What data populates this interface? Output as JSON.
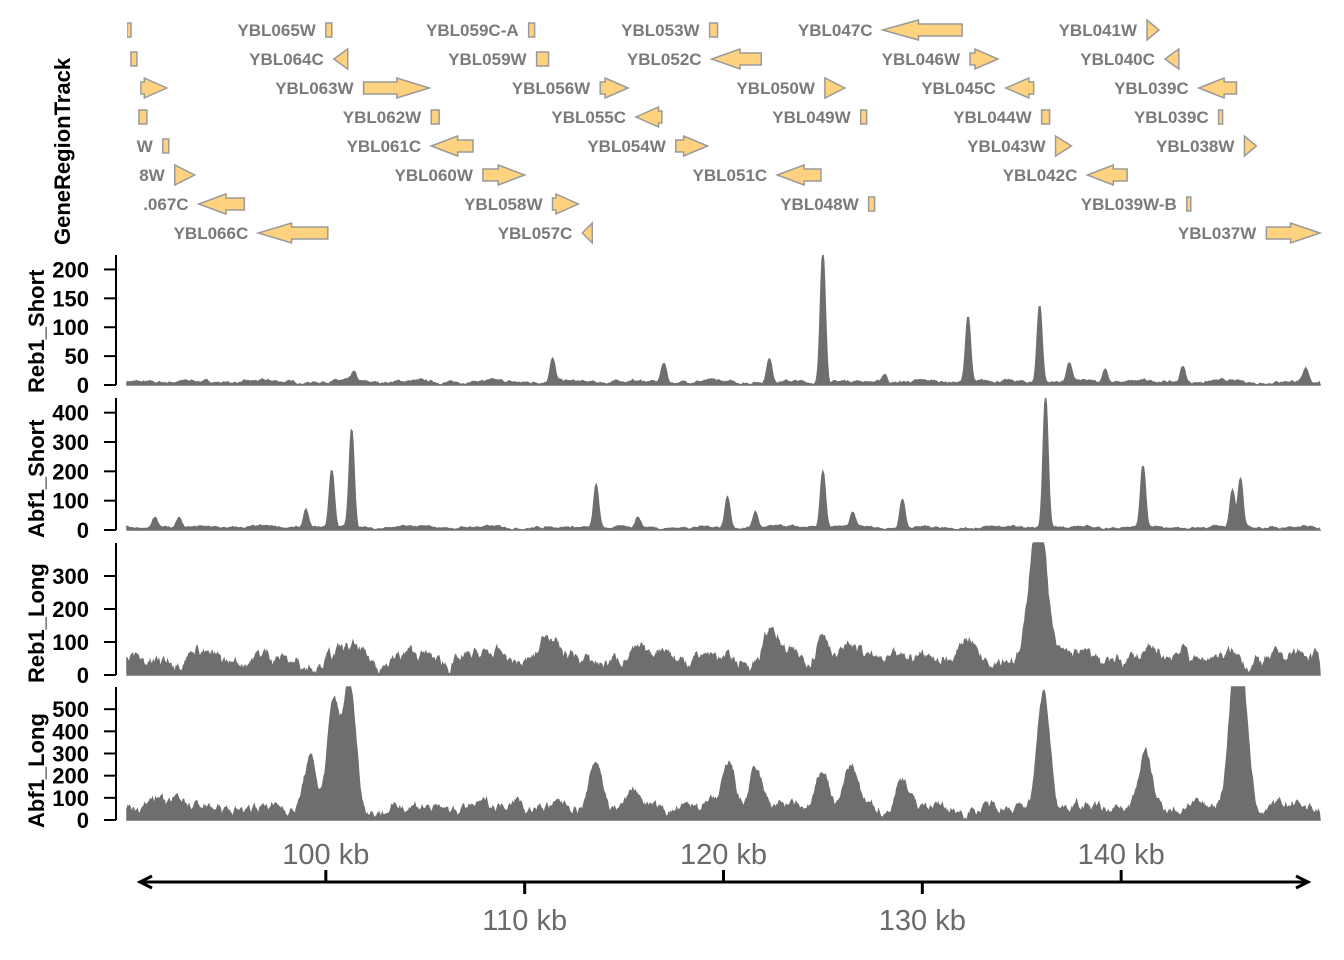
{
  "chart_data": {
    "type": "area",
    "xlim_kb": [
      90,
      150
    ],
    "x_axis": {
      "tick_labels_top": [
        "100 kb",
        "120 kb",
        "140 kb"
      ],
      "tick_values_top": [
        100,
        120,
        140
      ],
      "tick_labels_bottom": [
        "110 kb",
        "130 kb"
      ],
      "tick_values_bottom": [
        110,
        130
      ]
    },
    "gene_track": {
      "title": "GeneRegionTrack",
      "fill_color": "#FFD27F",
      "stroke_color": "#9A9A9A",
      "label_color": "#7A7A7A",
      "genes": [
        {
          "label": "",
          "row": 1,
          "start": 90.0,
          "end": 90.2,
          "strand": "*"
        },
        {
          "label": "YBL065W",
          "row": 1,
          "start": 100.0,
          "end": 100.3,
          "strand": "*"
        },
        {
          "label": "YBL059C-A",
          "row": 1,
          "start": 110.2,
          "end": 110.5,
          "strand": "*"
        },
        {
          "label": "YBL053W",
          "row": 1,
          "start": 119.3,
          "end": 119.7,
          "strand": "*"
        },
        {
          "label": "YBL047C",
          "row": 1,
          "start": 128.0,
          "end": 132.0,
          "strand": "-"
        },
        {
          "label": "YBL041W",
          "row": 1,
          "start": 141.3,
          "end": 141.9,
          "strand": "+"
        },
        {
          "label": "",
          "row": 2,
          "start": 90.2,
          "end": 90.5,
          "strand": "*"
        },
        {
          "label": "YBL064C",
          "row": 2,
          "start": 100.4,
          "end": 101.1,
          "strand": "-"
        },
        {
          "label": "YBL059W",
          "row": 2,
          "start": 110.6,
          "end": 111.2,
          "strand": "*"
        },
        {
          "label": "YBL052C",
          "row": 2,
          "start": 119.4,
          "end": 121.9,
          "strand": "-"
        },
        {
          "label": "YBL046W",
          "row": 2,
          "start": 132.4,
          "end": 133.8,
          "strand": "+"
        },
        {
          "label": "YBL040C",
          "row": 2,
          "start": 142.2,
          "end": 142.9,
          "strand": "-"
        },
        {
          "label": "",
          "row": 3,
          "start": 90.7,
          "end": 92.0,
          "strand": "+"
        },
        {
          "label": "YBL063W",
          "row": 3,
          "start": 101.9,
          "end": 105.2,
          "strand": "+"
        },
        {
          "label": "YBL056W",
          "row": 3,
          "start": 113.8,
          "end": 115.2,
          "strand": "+"
        },
        {
          "label": "YBL050W",
          "row": 3,
          "start": 125.1,
          "end": 126.1,
          "strand": "+"
        },
        {
          "label": "YBL045C",
          "row": 3,
          "start": 134.2,
          "end": 135.6,
          "strand": "-"
        },
        {
          "label": "YBL039C",
          "row": 3,
          "start": 143.9,
          "end": 145.8,
          "strand": "-"
        },
        {
          "label": "",
          "row": 4,
          "start": 90.6,
          "end": 91.0,
          "strand": "*"
        },
        {
          "label": "YBL062W",
          "row": 4,
          "start": 105.3,
          "end": 105.7,
          "strand": "*"
        },
        {
          "label": "YBL055C",
          "row": 4,
          "start": 115.6,
          "end": 116.9,
          "strand": "-"
        },
        {
          "label": "YBL049W",
          "row": 4,
          "start": 126.9,
          "end": 127.2,
          "strand": "*"
        },
        {
          "label": "YBL044W",
          "row": 4,
          "start": 136.0,
          "end": 136.4,
          "strand": "*"
        },
        {
          "label": "YBL039C",
          "row": 4,
          "start": 144.9,
          "end": 145.0,
          "strand": "*"
        },
        {
          "label": "W",
          "row": 5,
          "start": 91.8,
          "end": 92.1,
          "strand": "*"
        },
        {
          "label": "YBL061C",
          "row": 5,
          "start": 105.3,
          "end": 107.4,
          "strand": "-"
        },
        {
          "label": "YBL054W",
          "row": 5,
          "start": 117.6,
          "end": 119.2,
          "strand": "+"
        },
        {
          "label": "YBL043W",
          "row": 5,
          "start": 136.7,
          "end": 137.5,
          "strand": "+"
        },
        {
          "label": "YBL038W",
          "row": 5,
          "start": 146.2,
          "end": 146.8,
          "strand": "+"
        },
        {
          "label": "8W",
          "row": 6,
          "start": 92.4,
          "end": 93.4,
          "strand": "+"
        },
        {
          "label": "YBL060W",
          "row": 6,
          "start": 107.9,
          "end": 110.0,
          "strand": "+"
        },
        {
          "label": "YBL051C",
          "row": 6,
          "start": 122.7,
          "end": 124.9,
          "strand": "-"
        },
        {
          "label": "YBL042C",
          "row": 6,
          "start": 138.3,
          "end": 140.3,
          "strand": "-"
        },
        {
          "label": ".067C",
          "row": 7,
          "start": 93.6,
          "end": 95.9,
          "strand": "-"
        },
        {
          "label": "YBL058W",
          "row": 7,
          "start": 111.4,
          "end": 112.7,
          "strand": "+"
        },
        {
          "label": "YBL048W",
          "row": 7,
          "start": 127.3,
          "end": 127.6,
          "strand": "*"
        },
        {
          "label": "YBL039W-B",
          "row": 7,
          "start": 143.3,
          "end": 143.5,
          "strand": "*"
        },
        {
          "label": "YBL066C",
          "row": 8,
          "start": 96.6,
          "end": 100.1,
          "strand": "-"
        },
        {
          "label": "YBL057C",
          "row": 8,
          "start": 112.9,
          "end": 113.4,
          "strand": "-"
        },
        {
          "label": "YBL037W",
          "row": 8,
          "start": 147.3,
          "end": 150.0,
          "strand": "+"
        }
      ]
    },
    "data_tracks": [
      {
        "title": "Reb1_Short",
        "ylim": [
          0,
          225
        ],
        "ticks": [
          "0",
          "50",
          "100",
          "150",
          "200"
        ],
        "tick_values": [
          0,
          50,
          100,
          150,
          200
        ],
        "color": "#6E6E6E",
        "baseline": 5,
        "peak_width_kb": 0.12,
        "peaks": [
          [
            101.4,
            15
          ],
          [
            111.4,
            40
          ],
          [
            117.0,
            35
          ],
          [
            122.3,
            40
          ],
          [
            125.0,
            225
          ],
          [
            128.1,
            15
          ],
          [
            132.3,
            115
          ],
          [
            135.9,
            135
          ],
          [
            137.4,
            30
          ],
          [
            139.2,
            25
          ],
          [
            143.1,
            28
          ],
          [
            149.3,
            20
          ]
        ]
      },
      {
        "title": "Abf1_Short",
        "ylim": [
          0,
          450
        ],
        "ticks": [
          "0",
          "100",
          "200",
          "300",
          "400"
        ],
        "tick_values": [
          0,
          100,
          200,
          300,
          400
        ],
        "color": "#6E6E6E",
        "baseline": 8,
        "peak_width_kb": 0.12,
        "peaks": [
          [
            91.4,
            35
          ],
          [
            92.6,
            35
          ],
          [
            99.0,
            60
          ],
          [
            100.3,
            195
          ],
          [
            101.3,
            330
          ],
          [
            113.6,
            145
          ],
          [
            115.7,
            35
          ],
          [
            120.2,
            105
          ],
          [
            121.6,
            55
          ],
          [
            125.0,
            195
          ],
          [
            126.5,
            45
          ],
          [
            129.0,
            100
          ],
          [
            136.2,
            440
          ],
          [
            141.1,
            210
          ],
          [
            145.6,
            130
          ],
          [
            146.0,
            165
          ]
        ]
      },
      {
        "title": "Reb1_Long",
        "ylim": [
          0,
          400
        ],
        "ticks": [
          "0",
          "100",
          "200",
          "300"
        ],
        "tick_values": [
          0,
          100,
          200,
          300
        ],
        "color": "#6E6E6E",
        "baseline": 45,
        "peak_width_kb": 0.35,
        "peaks": [
          [
            93.6,
            25
          ],
          [
            101.4,
            25
          ],
          [
            111.2,
            80
          ],
          [
            117.0,
            55
          ],
          [
            122.4,
            80
          ],
          [
            125.0,
            100
          ],
          [
            126.5,
            25
          ],
          [
            132.3,
            85
          ],
          [
            135.7,
            300
          ],
          [
            136.0,
            250
          ],
          [
            143.0,
            45
          ]
        ]
      },
      {
        "title": "Abf1_Long",
        "ylim": [
          0,
          600
        ],
        "ticks": [
          "0",
          "100",
          "200",
          "300",
          "400",
          "500"
        ],
        "tick_values": [
          0,
          100,
          200,
          300,
          400,
          500
        ],
        "color": "#6E6E6E",
        "baseline": 50,
        "peak_width_kb": 0.3,
        "peaks": [
          [
            91.4,
            75
          ],
          [
            92.6,
            45
          ],
          [
            99.2,
            230
          ],
          [
            100.4,
            450
          ],
          [
            101.2,
            540
          ],
          [
            109.5,
            70
          ],
          [
            113.6,
            230
          ],
          [
            115.5,
            70
          ],
          [
            120.3,
            190
          ],
          [
            121.6,
            170
          ],
          [
            125.0,
            180
          ],
          [
            126.4,
            180
          ],
          [
            129.0,
            150
          ],
          [
            136.1,
            530
          ],
          [
            141.2,
            230
          ],
          [
            143.5,
            40
          ],
          [
            145.7,
            510
          ],
          [
            146.1,
            450
          ]
        ]
      }
    ]
  }
}
